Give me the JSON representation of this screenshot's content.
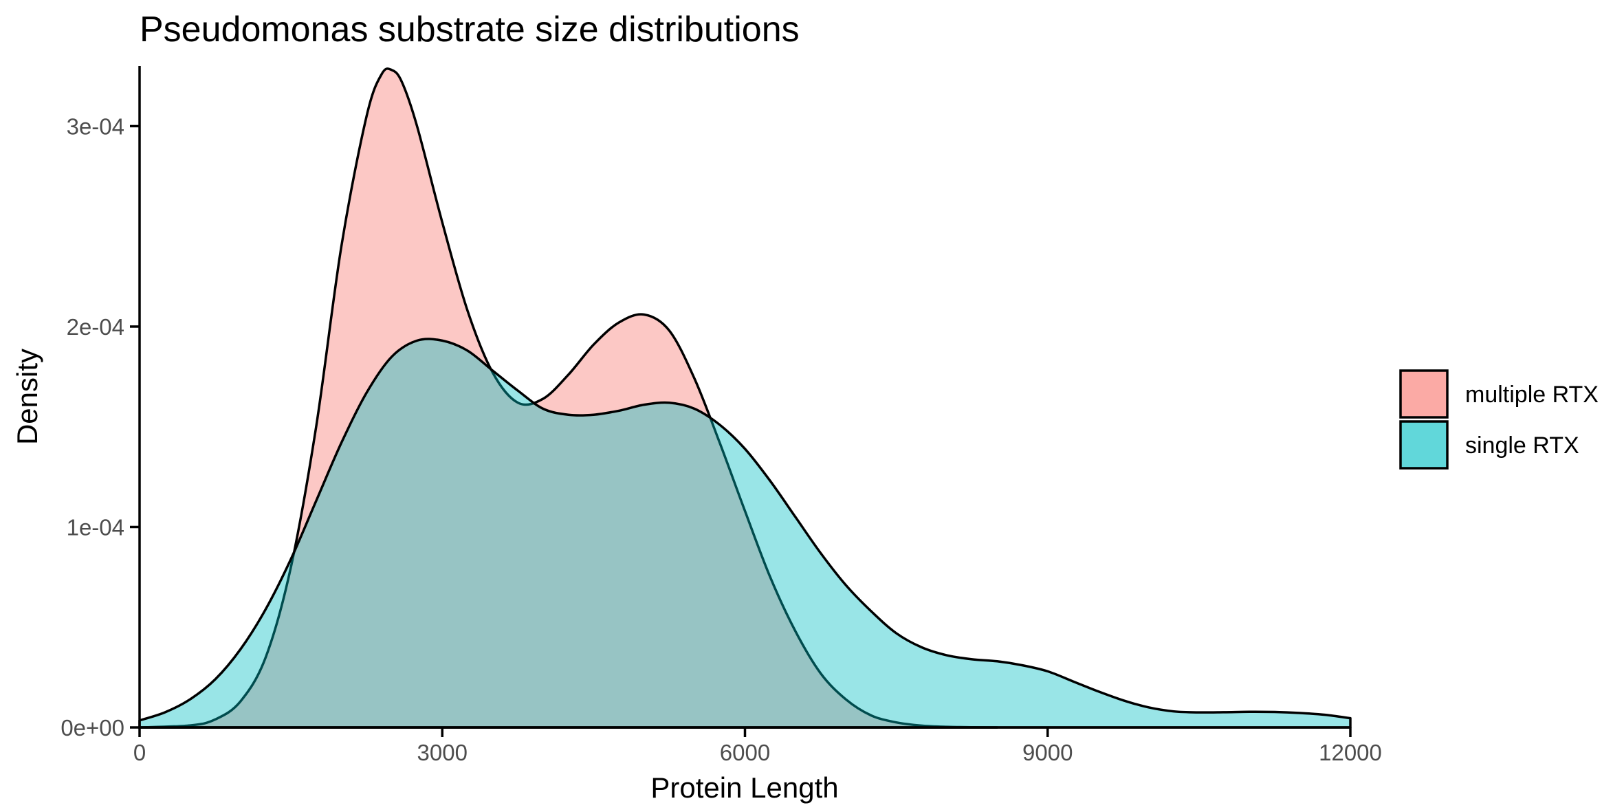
{
  "chart_data": {
    "type": "area",
    "title": "Pseudomonas substrate size distributions",
    "xlabel": "Protein Length",
    "ylabel": "Density",
    "xlim": [
      0,
      12000
    ],
    "ylim": [
      0,
      0.00033
    ],
    "x_ticks": [
      0,
      3000,
      6000,
      9000,
      12000
    ],
    "x_tick_labels": [
      "0",
      "3000",
      "6000",
      "9000",
      "12000"
    ],
    "y_ticks": [
      0,
      0.0001,
      0.0002,
      0.0003
    ],
    "y_tick_labels": [
      "0e+00",
      "1e-04",
      "2e-04",
      "3e-04"
    ],
    "grid": false,
    "legend_position": "right",
    "alpha": 0.4,
    "series": [
      {
        "name": "multiple RTX",
        "color": "#F8766D",
        "x": [
          0,
          500,
          750,
          1000,
          1250,
          1500,
          1750,
          2000,
          2250,
          2400,
          2500,
          2600,
          2750,
          3000,
          3250,
          3500,
          3750,
          4000,
          4250,
          4500,
          4750,
          5000,
          5250,
          5500,
          5750,
          6000,
          6250,
          6500,
          6750,
          7000,
          7250,
          7500,
          7750,
          8000,
          8250,
          8500
        ],
        "y": [
          0,
          1e-06,
          4e-06,
          1.3e-05,
          3.5e-05,
          8e-05,
          0.00015,
          0.00024,
          0.000305,
          0.000326,
          0.000328,
          0.000322,
          0.0003,
          0.000252,
          0.000208,
          0.000177,
          0.000162,
          0.000164,
          0.000176,
          0.000191,
          0.000202,
          0.000206,
          0.000198,
          0.000174,
          0.000142,
          0.000108,
          7.5e-05,
          4.8e-05,
          2.7e-05,
          1.4e-05,
          6e-06,
          2.5e-06,
          9e-07,
          3e-07,
          1e-07,
          0
        ]
      },
      {
        "name": "single RTX",
        "color": "#00BFC4",
        "x": [
          0,
          250,
          500,
          750,
          1000,
          1250,
          1500,
          1750,
          2000,
          2250,
          2500,
          2750,
          3000,
          3250,
          3500,
          3750,
          4000,
          4250,
          4500,
          4750,
          5000,
          5250,
          5500,
          5750,
          6000,
          6250,
          6500,
          6750,
          7000,
          7250,
          7500,
          7750,
          8000,
          8250,
          8500,
          8750,
          9000,
          9250,
          9500,
          9750,
          10000,
          10250,
          10500,
          10750,
          11000,
          11250,
          11500,
          11750,
          12000
        ],
        "y": [
          3.5e-06,
          7.5e-06,
          1.4e-05,
          2.4e-05,
          3.9e-05,
          5.9e-05,
          8.4e-05,
          0.000113,
          0.000142,
          0.000167,
          0.000185,
          0.000193,
          0.000193,
          0.000188,
          0.000178,
          0.000168,
          0.000159,
          0.000156,
          0.000156,
          0.000158,
          0.000161,
          0.000162,
          0.000159,
          0.000151,
          0.000139,
          0.000123,
          0.000105,
          8.7e-05,
          7.1e-05,
          5.8e-05,
          4.7e-05,
          4e-05,
          3.6e-05,
          3.4e-05,
          3.3e-05,
          3.1e-05,
          2.8e-05,
          2.3e-05,
          1.8e-05,
          1.35e-05,
          1e-05,
          8e-06,
          7.5e-06,
          7.6e-06,
          7.8e-06,
          7.7e-06,
          7.2e-06,
          6.3e-06,
          4.6e-06
        ]
      }
    ]
  }
}
